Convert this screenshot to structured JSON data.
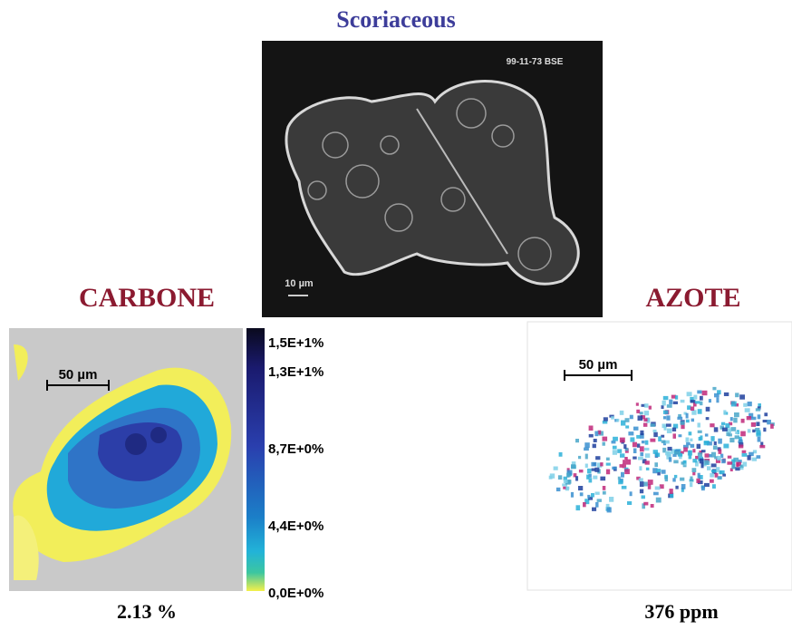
{
  "header": {
    "title": "Scoriaceous"
  },
  "bse_image": {
    "label": "99-11-73 BSE",
    "scale": "10 µm"
  },
  "carbon_panel": {
    "title": "CARBONE",
    "scale": "50 µm",
    "colorbar_labels": [
      "1,5E+1%",
      "1,3E+1%",
      "8,7E+0%",
      "4,4E+0%",
      "0,0E+0%"
    ],
    "value": "2.13 %"
  },
  "nitrogen_panel": {
    "title": "AZOTE",
    "scale": "50 µm",
    "value": "376 ppm"
  }
}
